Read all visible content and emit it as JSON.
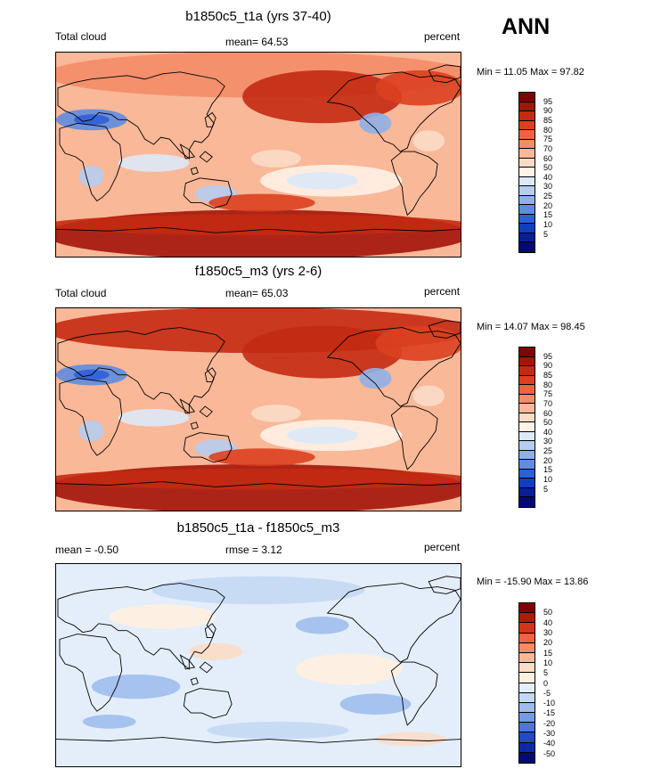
{
  "season": "ANN",
  "panels": [
    {
      "title": "b1850c5_t1a (yrs 37-40)",
      "left_label": "Total cloud",
      "center_label": "mean=  64.53",
      "units": "percent",
      "minmax": "Min =  11.05 Max =  97.82",
      "levels": [
        "95",
        "90",
        "85",
        "80",
        "75",
        "70",
        "60",
        "50",
        "40",
        "30",
        "25",
        "20",
        "15",
        "10",
        "5"
      ],
      "mean": 64.53,
      "min": 11.05,
      "max": 97.82
    },
    {
      "title": "f1850c5_m3 (yrs 2-6)",
      "left_label": "Total cloud",
      "center_label": "mean=  65.03",
      "units": "percent",
      "minmax": "Min =  14.07 Max =  98.45",
      "levels": [
        "95",
        "90",
        "85",
        "80",
        "75",
        "70",
        "60",
        "50",
        "40",
        "30",
        "25",
        "20",
        "15",
        "10",
        "5"
      ],
      "mean": 65.03,
      "min": 14.07,
      "max": 98.45
    },
    {
      "title": "b1850c5_t1a - f1850c5_m3",
      "left_label": "mean =  -0.50",
      "center_label": "rmse =   3.12",
      "units": "percent",
      "minmax": "Min = -15.90 Max =  13.86",
      "levels": [
        "50",
        "40",
        "30",
        "20",
        "15",
        "10",
        "5",
        "0",
        "-5",
        "-10",
        "-15",
        "-20",
        "-30",
        "-40",
        "-50"
      ],
      "mean": -0.5,
      "rmse": 3.12,
      "min": -15.9,
      "max": 13.86
    }
  ],
  "colors": {
    "scale": [
      "#7f0000",
      "#a3140a",
      "#c32a12",
      "#dc4020",
      "#ec6440",
      "#f48c68",
      "#f9b898",
      "#fbdcc6",
      "#fff2e6",
      "#dbe9f8",
      "#b6cdf0",
      "#8fb0e8",
      "#5e8ce0",
      "#2e5fd6",
      "#0f3ec0",
      "#0a1e96",
      "#050a72"
    ],
    "diff_scale": [
      "#7f0000",
      "#b5160c",
      "#d43418",
      "#ec6440",
      "#f48c68",
      "#f9b898",
      "#fbdcc6",
      "#fff0e0",
      "#e3eefa",
      "#c4d8f3",
      "#9fbcec",
      "#7899e4",
      "#4d74dc",
      "#2448c8",
      "#0c2aa8",
      "#050a72"
    ],
    "land_outline": "#000000"
  }
}
